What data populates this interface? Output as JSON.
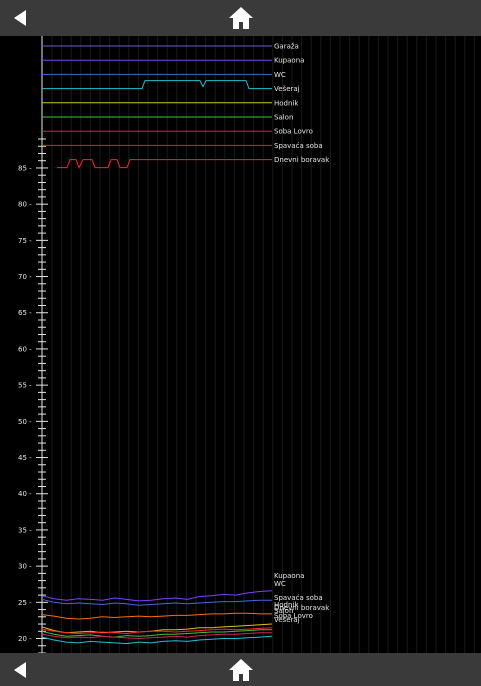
{
  "toolbar": {
    "back_icon": "back-arrow-icon",
    "home_icon": "home-icon"
  },
  "colors": {
    "background": "#000000",
    "bar": "#3a3a3a",
    "axis": "#e6e6e6",
    "grid": "#1a1a1a"
  },
  "chart_data": {
    "type": "line",
    "ylim": [
      18,
      89
    ],
    "y_ticks": [
      "20",
      "25",
      "30",
      "35",
      "40",
      "45",
      "50",
      "55",
      "60",
      "65",
      "70",
      "75",
      "80",
      "85"
    ],
    "status_series": [
      {
        "name": "Garaža",
        "color": "#6a5acd",
        "active": false
      },
      {
        "name": "Kupaona",
        "color": "#7a40ff",
        "active": false
      },
      {
        "name": "WC",
        "color": "#4169e1",
        "active": false
      },
      {
        "name": "Vešeraj",
        "color": "#20c0d0",
        "active": true
      },
      {
        "name": "Hodnik",
        "color": "#d4c020",
        "active": false
      },
      {
        "name": "Salon",
        "color": "#40c040",
        "active": false
      },
      {
        "name": "Soba Lovro",
        "color": "#d02060",
        "active": false
      },
      {
        "name": "Spavaća soba",
        "color": "#c03020",
        "active": false
      },
      {
        "name": "Dnevni boravak",
        "color": "#ff2020",
        "active": true
      }
    ],
    "temperature_series": [
      {
        "name": "Kupaona",
        "color": "#7a40ff",
        "values": [
          25.9,
          25.5,
          25.3,
          25.5,
          25.4,
          25.3,
          25.6,
          25.4,
          25.2,
          25.3,
          25.5,
          25.6,
          25.4,
          25.8,
          25.9,
          26.1,
          26.0,
          26.3,
          26.5,
          26.6
        ]
      },
      {
        "name": "WC",
        "color": "#4169e1",
        "values": [
          25.4,
          25.0,
          24.8,
          24.9,
          24.8,
          24.7,
          24.9,
          24.8,
          24.6,
          24.7,
          24.8,
          24.9,
          24.8,
          24.9,
          25.0,
          25.1,
          25.1,
          25.2,
          25.3,
          25.3
        ]
      },
      {
        "name": "Spavaća soba",
        "color": "#ff6a00",
        "values": [
          23.3,
          23.1,
          22.8,
          22.7,
          22.8,
          23.0,
          22.9,
          23.0,
          23.1,
          23.0,
          23.1,
          23.2,
          23.2,
          23.3,
          23.4,
          23.4,
          23.5,
          23.5,
          23.4,
          23.4
        ]
      },
      {
        "name": "Hodnik",
        "color": "#d4c020",
        "values": [
          21.6,
          21.1,
          20.8,
          20.9,
          21.0,
          20.8,
          20.9,
          21.0,
          20.9,
          21.0,
          21.2,
          21.2,
          21.3,
          21.5,
          21.5,
          21.6,
          21.7,
          21.8,
          21.9,
          22.0
        ]
      },
      {
        "name": "Dnevni boravak",
        "color": "#ff2020",
        "values": [
          21.3,
          21.0,
          20.8,
          20.7,
          20.8,
          20.9,
          20.8,
          20.7,
          20.9,
          21.0,
          21.0,
          20.9,
          21.0,
          21.1,
          21.2,
          21.3,
          21.2,
          21.3,
          21.4,
          21.5
        ]
      },
      {
        "name": "Salon",
        "color": "#40c040",
        "values": [
          21.0,
          20.6,
          20.3,
          20.4,
          20.5,
          20.3,
          20.2,
          20.4,
          20.3,
          20.4,
          20.6,
          20.6,
          20.7,
          20.8,
          20.9,
          20.9,
          21.0,
          21.1,
          21.2,
          21.2
        ]
      },
      {
        "name": "Soba Lovro",
        "color": "#d02060",
        "values": [
          20.6,
          20.3,
          20.1,
          20.2,
          20.1,
          20.3,
          20.2,
          20.1,
          20.0,
          20.1,
          20.2,
          20.3,
          20.2,
          20.4,
          20.5,
          20.6,
          20.6,
          20.7,
          20.8,
          20.8
        ]
      },
      {
        "name": "Vešeraj",
        "color": "#20c0d0",
        "values": [
          20.2,
          19.8,
          19.5,
          19.4,
          19.6,
          19.5,
          19.4,
          19.3,
          19.5,
          19.4,
          19.6,
          19.7,
          19.6,
          19.8,
          19.9,
          20.0,
          20.0,
          20.1,
          20.2,
          20.3
        ]
      }
    ]
  }
}
